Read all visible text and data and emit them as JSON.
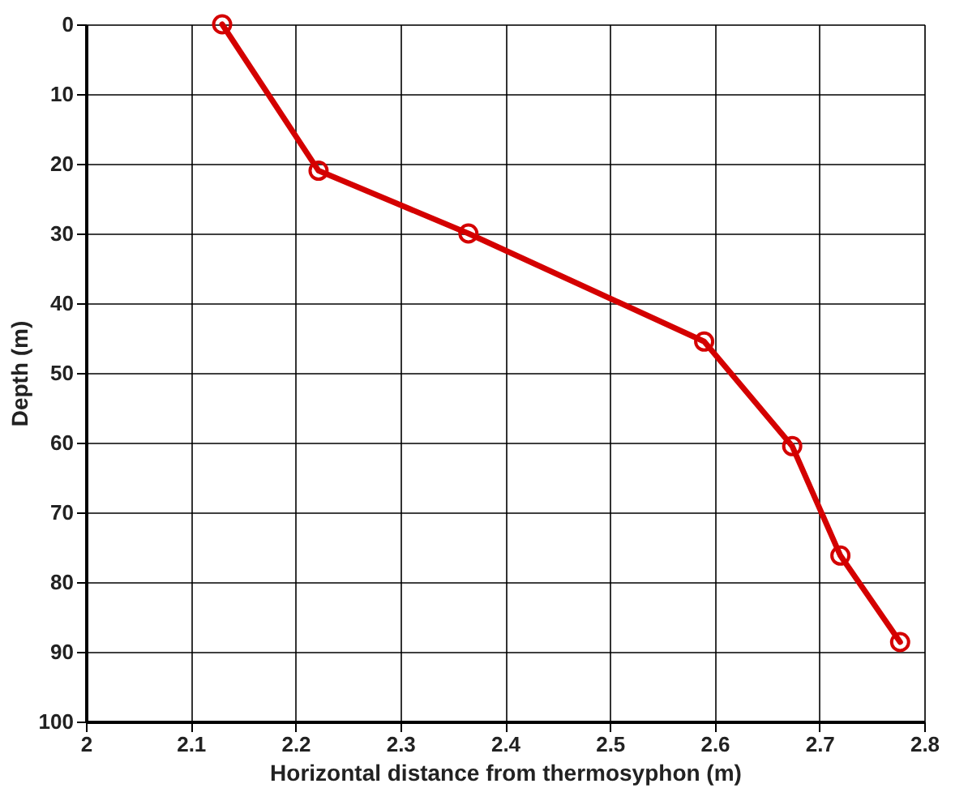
{
  "chart_data": {
    "type": "line",
    "xlabel": "Horizontal distance  from thermosyphon (m)",
    "ylabel": "Depth (m)",
    "x": [
      2.13,
      2.222,
      2.365,
      2.59,
      2.674,
      2.72,
      2.777
    ],
    "series": [
      {
        "color": "#d40000",
        "values": [
          0,
          21,
          30,
          45.5,
          60.5,
          76.2,
          88.6
        ]
      }
    ],
    "xlim": [
      2,
      2.8
    ],
    "xticks": [
      2,
      2.1,
      2.2,
      2.3,
      2.4,
      2.5,
      2.6,
      2.7,
      2.8
    ],
    "ylim": [
      100,
      0
    ],
    "yticks": [
      0,
      10,
      20,
      30,
      40,
      50,
      60,
      70,
      80,
      90,
      100
    ],
    "grid": true,
    "marker": "circle",
    "line_style": "solid"
  }
}
